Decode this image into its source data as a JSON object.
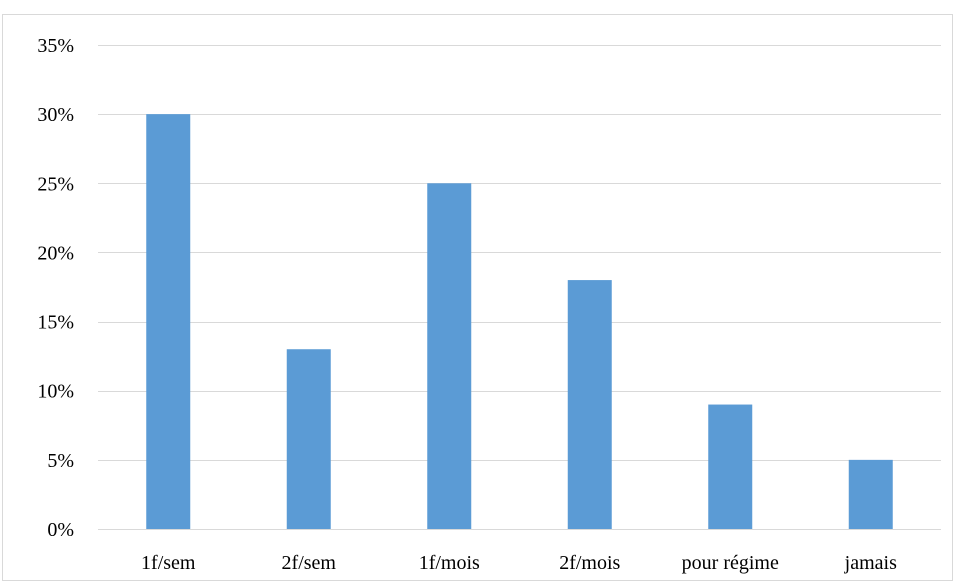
{
  "chart_data": {
    "type": "bar",
    "categories": [
      "1f/sem",
      "2f/sem",
      "1f/mois",
      "2f/mois",
      "pour régime",
      "jamais"
    ],
    "values": [
      30,
      13,
      25,
      18,
      9,
      5
    ],
    "ylim": [
      0,
      35
    ],
    "yticks": [
      0,
      5,
      10,
      15,
      20,
      25,
      30,
      35
    ],
    "ytick_labels": [
      "0%",
      "5%",
      "10%",
      "15%",
      "20%",
      "25%",
      "30%",
      "35%"
    ],
    "y_unit": "%",
    "grid": true,
    "legend": "none",
    "bar_color": "#5b9bd5",
    "grid_color": "#d9d9d9",
    "axis_color": "#d9d9d9",
    "title": "",
    "xlabel": "",
    "ylabel": ""
  }
}
